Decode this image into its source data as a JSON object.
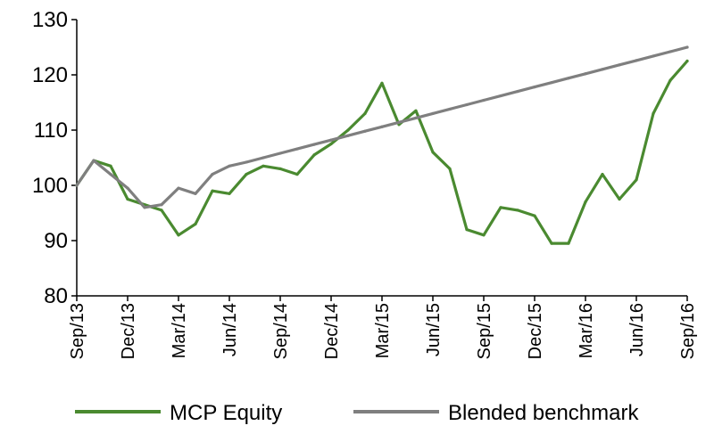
{
  "chart_data": {
    "type": "line",
    "title": "",
    "xlabel": "",
    "ylabel": "",
    "ylim": [
      80,
      130
    ],
    "yticks": [
      "80",
      "90",
      "100",
      "110",
      "120",
      "130"
    ],
    "xticks": [
      "Sep/13",
      "Dec/13",
      "Mar/14",
      "Jun/14",
      "Sep/14",
      "Dec/14",
      "Mar/15",
      "Jun/15",
      "Sep/15",
      "Dec/15",
      "Mar/16",
      "Jun/16",
      "Sep/16"
    ],
    "grid": false,
    "legend_position": "bottom",
    "x": [
      "2013-09",
      "2013-10",
      "2013-11",
      "2013-12",
      "2014-01",
      "2014-02",
      "2014-03",
      "2014-04",
      "2014-05",
      "2014-06",
      "2014-07",
      "2014-08",
      "2014-09",
      "2014-10",
      "2014-11",
      "2014-12",
      "2015-01",
      "2015-02",
      "2015-03",
      "2015-04",
      "2015-05",
      "2015-06",
      "2015-07",
      "2015-08",
      "2015-09",
      "2015-10",
      "2015-11",
      "2015-12",
      "2016-01",
      "2016-02",
      "2016-03",
      "2016-04",
      "2016-05",
      "2016-06",
      "2016-07",
      "2016-08",
      "2016-09"
    ],
    "series": [
      {
        "name": "MCP Equity",
        "color": "#4a8a30",
        "values": [
          100,
          104.5,
          103.5,
          97.5,
          96.5,
          95.5,
          91,
          93,
          99,
          98.5,
          102,
          103.5,
          103,
          102,
          105.5,
          107.5,
          110,
          113,
          118.5,
          111,
          113.5,
          106,
          103,
          92,
          91,
          96,
          95.5,
          94.5,
          89.5,
          89.5,
          97,
          102,
          97.5,
          101,
          113,
          119,
          122.5
        ]
      },
      {
        "name": "Blended benchmark",
        "color": "#7f7f7f",
        "values": [
          100,
          104.5,
          102,
          99.5,
          96,
          96.5,
          99.5,
          98.5,
          102,
          103.5,
          104.2,
          105,
          105.8,
          106.6,
          107.4,
          108.2,
          109,
          109.8,
          110.6,
          111.4,
          112.2,
          113,
          113.8,
          114.6,
          115.4,
          116.2,
          117,
          117.8,
          118.6,
          119.4,
          120.2,
          121,
          121.8,
          122.6,
          123.4,
          124.2,
          125
        ]
      }
    ]
  }
}
